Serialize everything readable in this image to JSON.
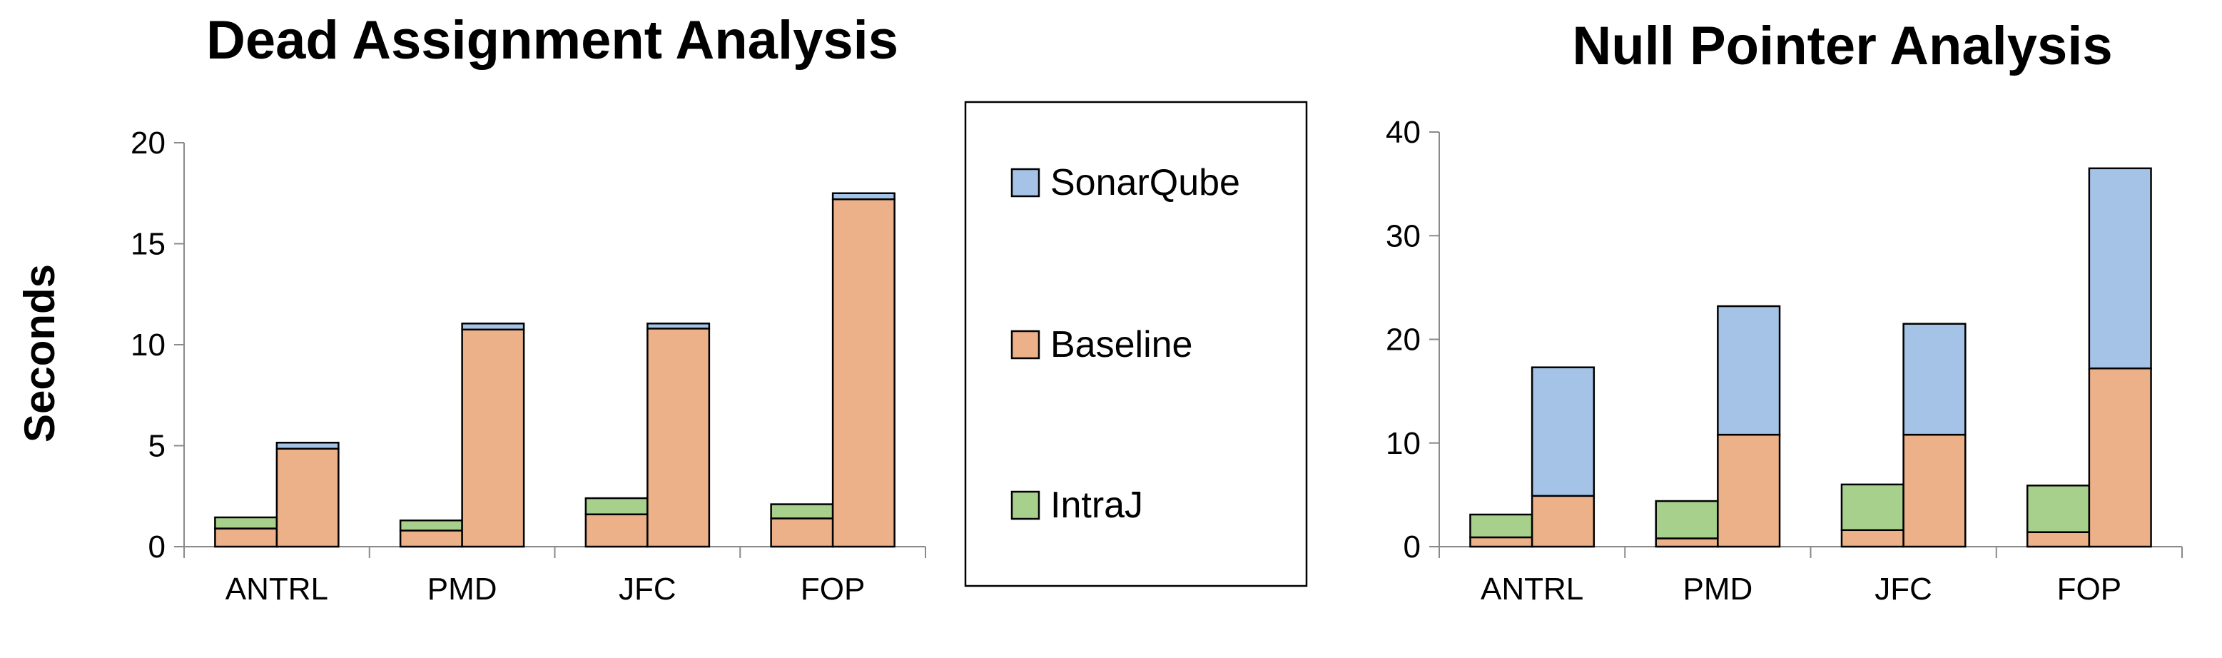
{
  "chart_data": [
    {
      "type": "bar",
      "stacked": true,
      "title": "Dead Assignment Analysis",
      "ylabel": "Seconds",
      "xlabel": "",
      "ylim": [
        0,
        20
      ],
      "yticks": [
        0,
        5,
        10,
        15,
        20
      ],
      "categories": [
        "ANTRL",
        "PMD",
        "JFC",
        "FOP"
      ],
      "bars_per_category": [
        {
          "name": "IntraJ",
          "stack": [
            {
              "series": "Baseline",
              "value": 0.9
            },
            {
              "series": "IntraJ",
              "value": 0.55
            }
          ]
        },
        {
          "name": "SonarQube",
          "stack": [
            {
              "series": "Baseline",
              "value": 4.85
            },
            {
              "series": "SonarQube",
              "value": 0.3
            }
          ]
        }
      ],
      "series": [
        {
          "name": "IntraJ",
          "values": [
            [
              0.55,
              0.5,
              0.8,
              0.7
            ],
            null
          ]
        },
        {
          "name": "Baseline",
          "values": [
            [
              0.9,
              0.8,
              1.6,
              1.4
            ],
            [
              4.85,
              10.75,
              10.8,
              17.2
            ]
          ]
        },
        {
          "name": "SonarQube",
          "values": [
            null,
            [
              0.3,
              0.3,
              0.25,
              0.3
            ]
          ]
        }
      ],
      "grid": false
    },
    {
      "type": "bar",
      "stacked": true,
      "title": "Null Pointer Analysis",
      "ylabel": "",
      "xlabel": "",
      "ylim": [
        0,
        40
      ],
      "yticks": [
        0,
        10,
        20,
        30,
        40
      ],
      "categories": [
        "ANTRL",
        "PMD",
        "JFC",
        "FOP"
      ],
      "series": [
        {
          "name": "IntraJ",
          "values": [
            [
              2.2,
              3.6,
              4.4,
              4.5
            ],
            null
          ]
        },
        {
          "name": "Baseline",
          "values": [
            [
              0.9,
              0.8,
              1.6,
              1.4
            ],
            [
              4.9,
              10.8,
              10.8,
              17.2
            ]
          ]
        },
        {
          "name": "SonarQube",
          "values": [
            null,
            [
              12.4,
              12.4,
              10.7,
              19.3
            ]
          ]
        }
      ],
      "grid": false
    }
  ],
  "legend": {
    "placement": "center",
    "items": [
      {
        "label": "SonarQube",
        "color": "#a5c3e6"
      },
      {
        "label": "Baseline",
        "color": "#ecb189"
      },
      {
        "label": "IntraJ",
        "color": "#a8d08d"
      }
    ]
  },
  "colors": {
    "IntraJ": "#a8d08d",
    "Baseline": "#ecb189",
    "SonarQube": "#a5c3e6"
  }
}
